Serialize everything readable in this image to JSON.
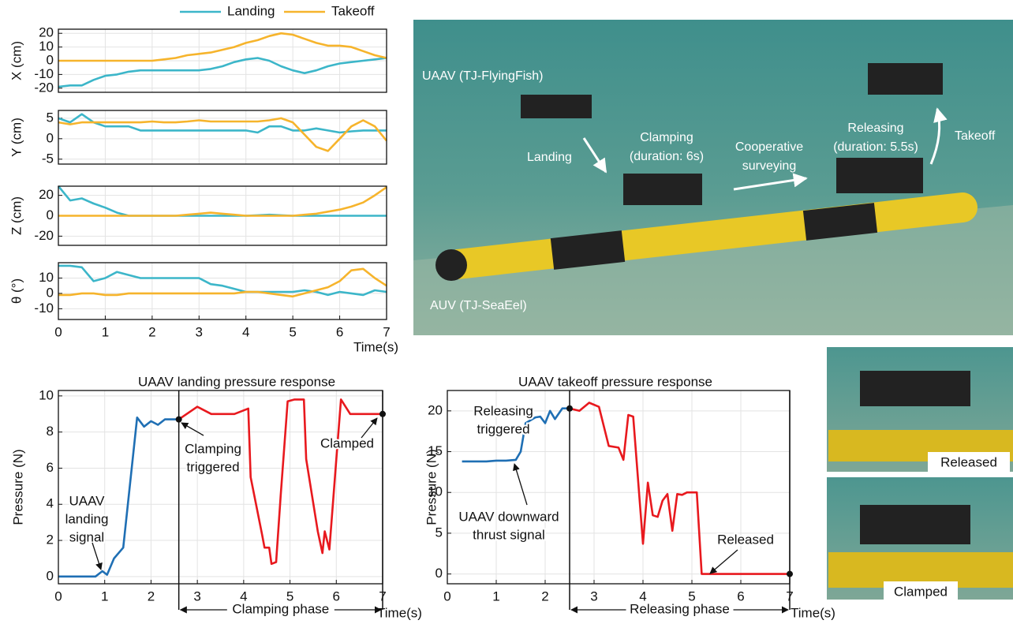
{
  "chart_data": [
    {
      "type": "line",
      "ylabel": "X (cm)",
      "x": [
        0,
        0.25,
        0.5,
        0.75,
        1,
        1.25,
        1.5,
        1.75,
        2,
        2.25,
        2.5,
        2.75,
        3,
        3.25,
        3.5,
        3.75,
        4,
        4.25,
        4.5,
        4.75,
        5,
        5.25,
        5.5,
        5.75,
        6,
        6.25,
        6.5,
        6.75,
        7
      ],
      "series": [
        {
          "name": "Landing",
          "color": "#3cb6c9",
          "values": [
            -19,
            -18,
            -18,
            -14,
            -11,
            -10,
            -8,
            -7,
            -7,
            -7,
            -7,
            -7,
            -7,
            -6,
            -4,
            -1,
            1,
            2,
            0,
            -4,
            -7,
            -9,
            -7,
            -4,
            -2,
            -1,
            0,
            1,
            2
          ]
        },
        {
          "name": "Takeoff",
          "color": "#f6b42c",
          "values": [
            0,
            0,
            0,
            0,
            0,
            0,
            0,
            0,
            0,
            1,
            2,
            4,
            5,
            6,
            8,
            10,
            13,
            15,
            18,
            20,
            19,
            16,
            13,
            11,
            11,
            10,
            7,
            4,
            2
          ]
        }
      ],
      "xlim": [
        0,
        7
      ],
      "ylim": [
        -23,
        23
      ],
      "xticks": [
        0,
        1,
        2,
        3,
        4,
        5,
        6,
        7
      ],
      "yticks": [
        -20,
        -10,
        0,
        10,
        20
      ],
      "grid": true
    },
    {
      "type": "line",
      "ylabel": "Y (cm)",
      "x": [
        0,
        0.25,
        0.5,
        0.75,
        1,
        1.25,
        1.5,
        1.75,
        2,
        2.25,
        2.5,
        2.75,
        3,
        3.25,
        3.5,
        3.75,
        4,
        4.25,
        4.5,
        4.75,
        5,
        5.25,
        5.5,
        5.75,
        6,
        6.25,
        6.5,
        6.75,
        7
      ],
      "series": [
        {
          "color": "#3cb6c9",
          "values": [
            5,
            4,
            6,
            4,
            3,
            3,
            3,
            2,
            2,
            2,
            2,
            2,
            2,
            2,
            2,
            2,
            2,
            1.5,
            3,
            3,
            2,
            2,
            2.5,
            2,
            1.5,
            1.8,
            2,
            2,
            2
          ]
        },
        {
          "color": "#f6b42c",
          "values": [
            4,
            3.5,
            4,
            4,
            4,
            4,
            4,
            4,
            4.2,
            4,
            4,
            4.2,
            4.5,
            4.2,
            4.2,
            4.2,
            4.2,
            4.2,
            4.5,
            5,
            4,
            1,
            -2,
            -3,
            0,
            3,
            4.5,
            3,
            -0.5
          ]
        }
      ],
      "xlim": [
        0,
        7
      ],
      "ylim": [
        -6.2,
        6.9
      ],
      "xticks": [
        0,
        1,
        2,
        3,
        4,
        5,
        6,
        7
      ],
      "yticks": [
        -5,
        0,
        5
      ],
      "grid": true
    },
    {
      "type": "line",
      "ylabel": "Z (cm)",
      "x": [
        0,
        0.25,
        0.5,
        0.75,
        1,
        1.25,
        1.5,
        1.75,
        2,
        2.25,
        2.5,
        2.75,
        3,
        3.25,
        3.5,
        3.75,
        4,
        4.25,
        4.5,
        4.75,
        5,
        5.25,
        5.5,
        5.75,
        6,
        6.25,
        6.5,
        6.75,
        7
      ],
      "series": [
        {
          "color": "#3cb6c9",
          "values": [
            29,
            15,
            17,
            12,
            8,
            3,
            0,
            0,
            0,
            0,
            0,
            0,
            0,
            0,
            0,
            0,
            0,
            0.5,
            1,
            0.5,
            0,
            0,
            0,
            0,
            0,
            0,
            0,
            0,
            0
          ]
        },
        {
          "color": "#f6b42c",
          "values": [
            0,
            0,
            0,
            0,
            0,
            0,
            0,
            0,
            0,
            0,
            0,
            1,
            2,
            3,
            2,
            1,
            0,
            0,
            0,
            0,
            0,
            1,
            2,
            4,
            6,
            9,
            13,
            20,
            28
          ]
        }
      ],
      "xlim": [
        0,
        7
      ],
      "ylim": [
        -29,
        29
      ],
      "xticks": [
        0,
        1,
        2,
        3,
        4,
        5,
        6,
        7
      ],
      "yticks": [
        -20,
        0,
        20
      ],
      "grid": true
    },
    {
      "type": "line",
      "ylabel": "θ (°)",
      "xlabel": "Time(s)",
      "x": [
        0,
        0.25,
        0.5,
        0.75,
        1,
        1.25,
        1.5,
        1.75,
        2,
        2.25,
        2.5,
        2.75,
        3,
        3.25,
        3.5,
        3.75,
        4,
        4.25,
        4.5,
        4.75,
        5,
        5.25,
        5.5,
        5.75,
        6,
        6.25,
        6.5,
        6.75,
        7
      ],
      "series": [
        {
          "color": "#3cb6c9",
          "values": [
            18,
            18,
            17,
            8,
            10,
            14,
            12,
            10,
            10,
            10,
            10,
            10,
            10,
            6,
            5,
            3,
            1,
            1,
            1,
            1,
            1,
            2,
            1,
            -1,
            1,
            0,
            -1,
            2,
            1
          ]
        },
        {
          "color": "#f6b42c",
          "values": [
            -1,
            -1,
            0,
            0,
            -1,
            -1,
            0,
            0,
            0,
            0,
            0,
            0,
            0,
            0,
            0,
            0,
            1,
            1,
            0,
            -1,
            -2,
            0,
            2,
            4,
            8,
            15,
            16,
            10,
            5
          ]
        }
      ],
      "xlim": [
        0,
        7
      ],
      "ylim": [
        -17,
        20
      ],
      "xticks": [
        0,
        1,
        2,
        3,
        4,
        5,
        6,
        7
      ],
      "yticks": [
        -10,
        0,
        10
      ],
      "grid": true
    },
    {
      "type": "line",
      "title": "UAAV landing pressure response",
      "ylabel": "Pressure (N)",
      "xlabel": "Time(s)",
      "phase_label": "Clamping phase",
      "annotations": [
        [
          "UAAV",
          "landing",
          "signal"
        ],
        [
          "Clamping",
          "triggered"
        ],
        [
          "Clamped"
        ]
      ],
      "x": [
        0,
        0.8,
        0.95,
        1.05,
        1.2,
        1.4,
        1.7,
        1.85,
        2.0,
        2.15,
        2.3,
        2.45,
        2.6,
        3.0,
        3.3,
        3.8,
        4.1,
        4.15,
        4.4,
        4.45,
        4.55,
        4.6,
        4.7,
        4.8,
        4.95,
        5.1,
        5.3,
        5.35,
        5.6,
        5.7,
        5.75,
        5.85,
        6.0,
        6.1,
        6.3,
        7.0
      ],
      "series": [
        {
          "color": "#1f6fb4",
          "values": [
            0,
            0,
            0.3,
            0.1,
            1.0,
            1.6,
            8.8,
            8.3,
            8.6,
            8.4,
            8.7,
            8.7,
            8.7,
            null,
            null,
            null,
            null,
            null,
            null,
            null,
            null,
            null,
            null,
            null,
            null,
            null,
            null,
            null,
            null,
            null,
            null,
            null,
            null,
            null,
            null,
            null
          ]
        },
        {
          "color": "#e8191e",
          "values": [
            null,
            null,
            null,
            null,
            null,
            null,
            null,
            null,
            null,
            null,
            null,
            null,
            8.7,
            9.4,
            9.0,
            9.0,
            9.3,
            5.5,
            2.3,
            1.6,
            1.6,
            0.7,
            0.8,
            4.5,
            9.7,
            9.8,
            9.8,
            6.5,
            2.5,
            1.3,
            2.5,
            1.5,
            6.5,
            9.8,
            9.0,
            9.0
          ]
        }
      ],
      "xlim": [
        0,
        7
      ],
      "ylim": [
        -0.4,
        10.3
      ],
      "xticks": [
        0,
        1,
        2,
        3,
        4,
        5,
        6,
        7
      ],
      "yticks": [
        0,
        2,
        4,
        6,
        8,
        10
      ],
      "grid": true
    },
    {
      "type": "line",
      "title": "UAAV takeoff pressure response",
      "ylabel": "Pressure (N)",
      "xlabel": "Time(s)",
      "phase_label": "Releasing phase",
      "annotations": [
        [
          "Releasing",
          "triggered"
        ],
        [
          "UAAV downward",
          "thrust signal"
        ],
        [
          "Released"
        ]
      ],
      "x": [
        0.3,
        0.8,
        1.0,
        1.2,
        1.4,
        1.5,
        1.6,
        1.8,
        1.9,
        2.0,
        2.1,
        2.2,
        2.35,
        2.5,
        2.7,
        2.9,
        3.1,
        3.3,
        3.5,
        3.6,
        3.7,
        3.8,
        4.0,
        4.1,
        4.2,
        4.3,
        4.4,
        4.5,
        4.6,
        4.7,
        4.8,
        4.9,
        5.1,
        5.2,
        5.5,
        7.0
      ],
      "series": [
        {
          "color": "#1f6fb4",
          "values": [
            13.8,
            13.8,
            13.9,
            13.9,
            14.0,
            15,
            18.5,
            19.2,
            19.3,
            18.5,
            20,
            19,
            20.3,
            20.3,
            null,
            null,
            null,
            null,
            null,
            null,
            null,
            null,
            null,
            null,
            null,
            null,
            null,
            null,
            null,
            null,
            null,
            null,
            null,
            null,
            null,
            null
          ]
        },
        {
          "color": "#e8191e",
          "values": [
            null,
            null,
            null,
            null,
            null,
            null,
            null,
            null,
            null,
            null,
            null,
            null,
            null,
            20.3,
            20,
            21,
            20.5,
            15.7,
            15.5,
            14.0,
            19.5,
            19.3,
            3.7,
            11.2,
            7.2,
            7.0,
            9.0,
            9.8,
            5.3,
            9.8,
            9.7,
            10,
            10,
            0,
            0,
            0
          ]
        }
      ],
      "xlim": [
        0,
        7
      ],
      "ylim": [
        -1.2,
        22.5
      ],
      "xticks": [
        0,
        1,
        2,
        3,
        4,
        5,
        6,
        7
      ],
      "yticks": [
        0,
        5,
        10,
        15,
        20
      ],
      "grid": true
    }
  ],
  "photo": {
    "labels": [
      [
        "UAAV (TJ-FlyingFish)"
      ],
      [
        "Landing"
      ],
      [
        "Clamping",
        "(duration: 6s)"
      ],
      [
        "Cooperative",
        "surveying"
      ],
      [
        "Releasing",
        "(duration: 5.5s)"
      ],
      [
        "Takeoff"
      ],
      [
        "AUV (TJ-SeaEel)"
      ]
    ]
  },
  "thumbnails": [
    "Released",
    "Clamped"
  ]
}
